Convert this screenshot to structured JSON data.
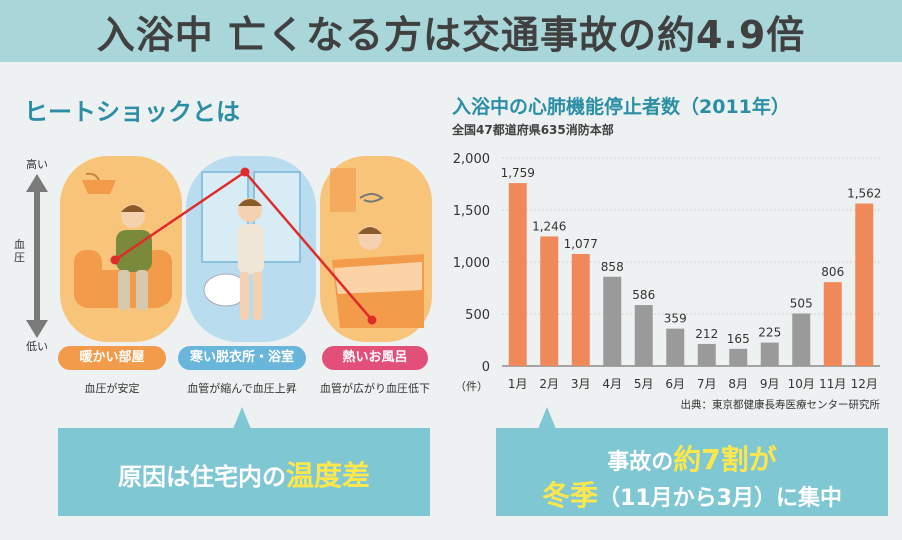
{
  "header": {
    "title": "入浴中 亡くなる方は交通事故の約4.9倍"
  },
  "heat_shock": {
    "title": "ヒートショックとは",
    "axis": {
      "top": "高い",
      "middle": "血圧",
      "bottom": "低い"
    },
    "rooms": [
      {
        "label": "暖かい部屋",
        "desc": "血圧が安定",
        "color": "#f29b4b",
        "level": "mid"
      },
      {
        "label": "寒い脱衣所・浴室",
        "desc": "血管が縮んで血圧上昇",
        "color": "#6ab6da",
        "level": "high"
      },
      {
        "label": "熱いお風呂",
        "desc": "血管が広がり血圧低下",
        "color": "#e2507a",
        "level": "low"
      }
    ],
    "cause_prefix": "原因は住宅内の",
    "cause_highlight": "温度差"
  },
  "chart_title": "入浴中の心肺機能停止者数（2011年）",
  "chart_subtitle": "全国47都道府県635消防本部",
  "chart_data": {
    "type": "bar",
    "categories": [
      "1月",
      "2月",
      "3月",
      "4月",
      "5月",
      "6月",
      "7月",
      "8月",
      "9月",
      "10月",
      "11月",
      "12月"
    ],
    "values": [
      1759,
      1246,
      1077,
      858,
      586,
      359,
      212,
      165,
      225,
      505,
      806,
      1562
    ],
    "value_labels": [
      "1,759",
      "1,246",
      "1,077",
      "858",
      "586",
      "359",
      "212",
      "165",
      "225",
      "505",
      "806",
      "1,562"
    ],
    "highlight": [
      true,
      true,
      true,
      false,
      false,
      false,
      false,
      false,
      false,
      false,
      true,
      true
    ],
    "ylim": [
      0,
      2000
    ],
    "yticks": [
      "0",
      "500",
      "1,000",
      "1,500",
      "2,000"
    ],
    "yunit": "（件）",
    "colors": {
      "highlight": "#f0895a",
      "normal": "#9a9a9a"
    },
    "source": "出典：東京都健康長寿医療センター研究所"
  },
  "accident": {
    "line1_prefix": "事故の",
    "line1_highlight": "約7割が",
    "line2_highlight": "冬季",
    "line2_suffix": "（11月から3月）に集中"
  }
}
